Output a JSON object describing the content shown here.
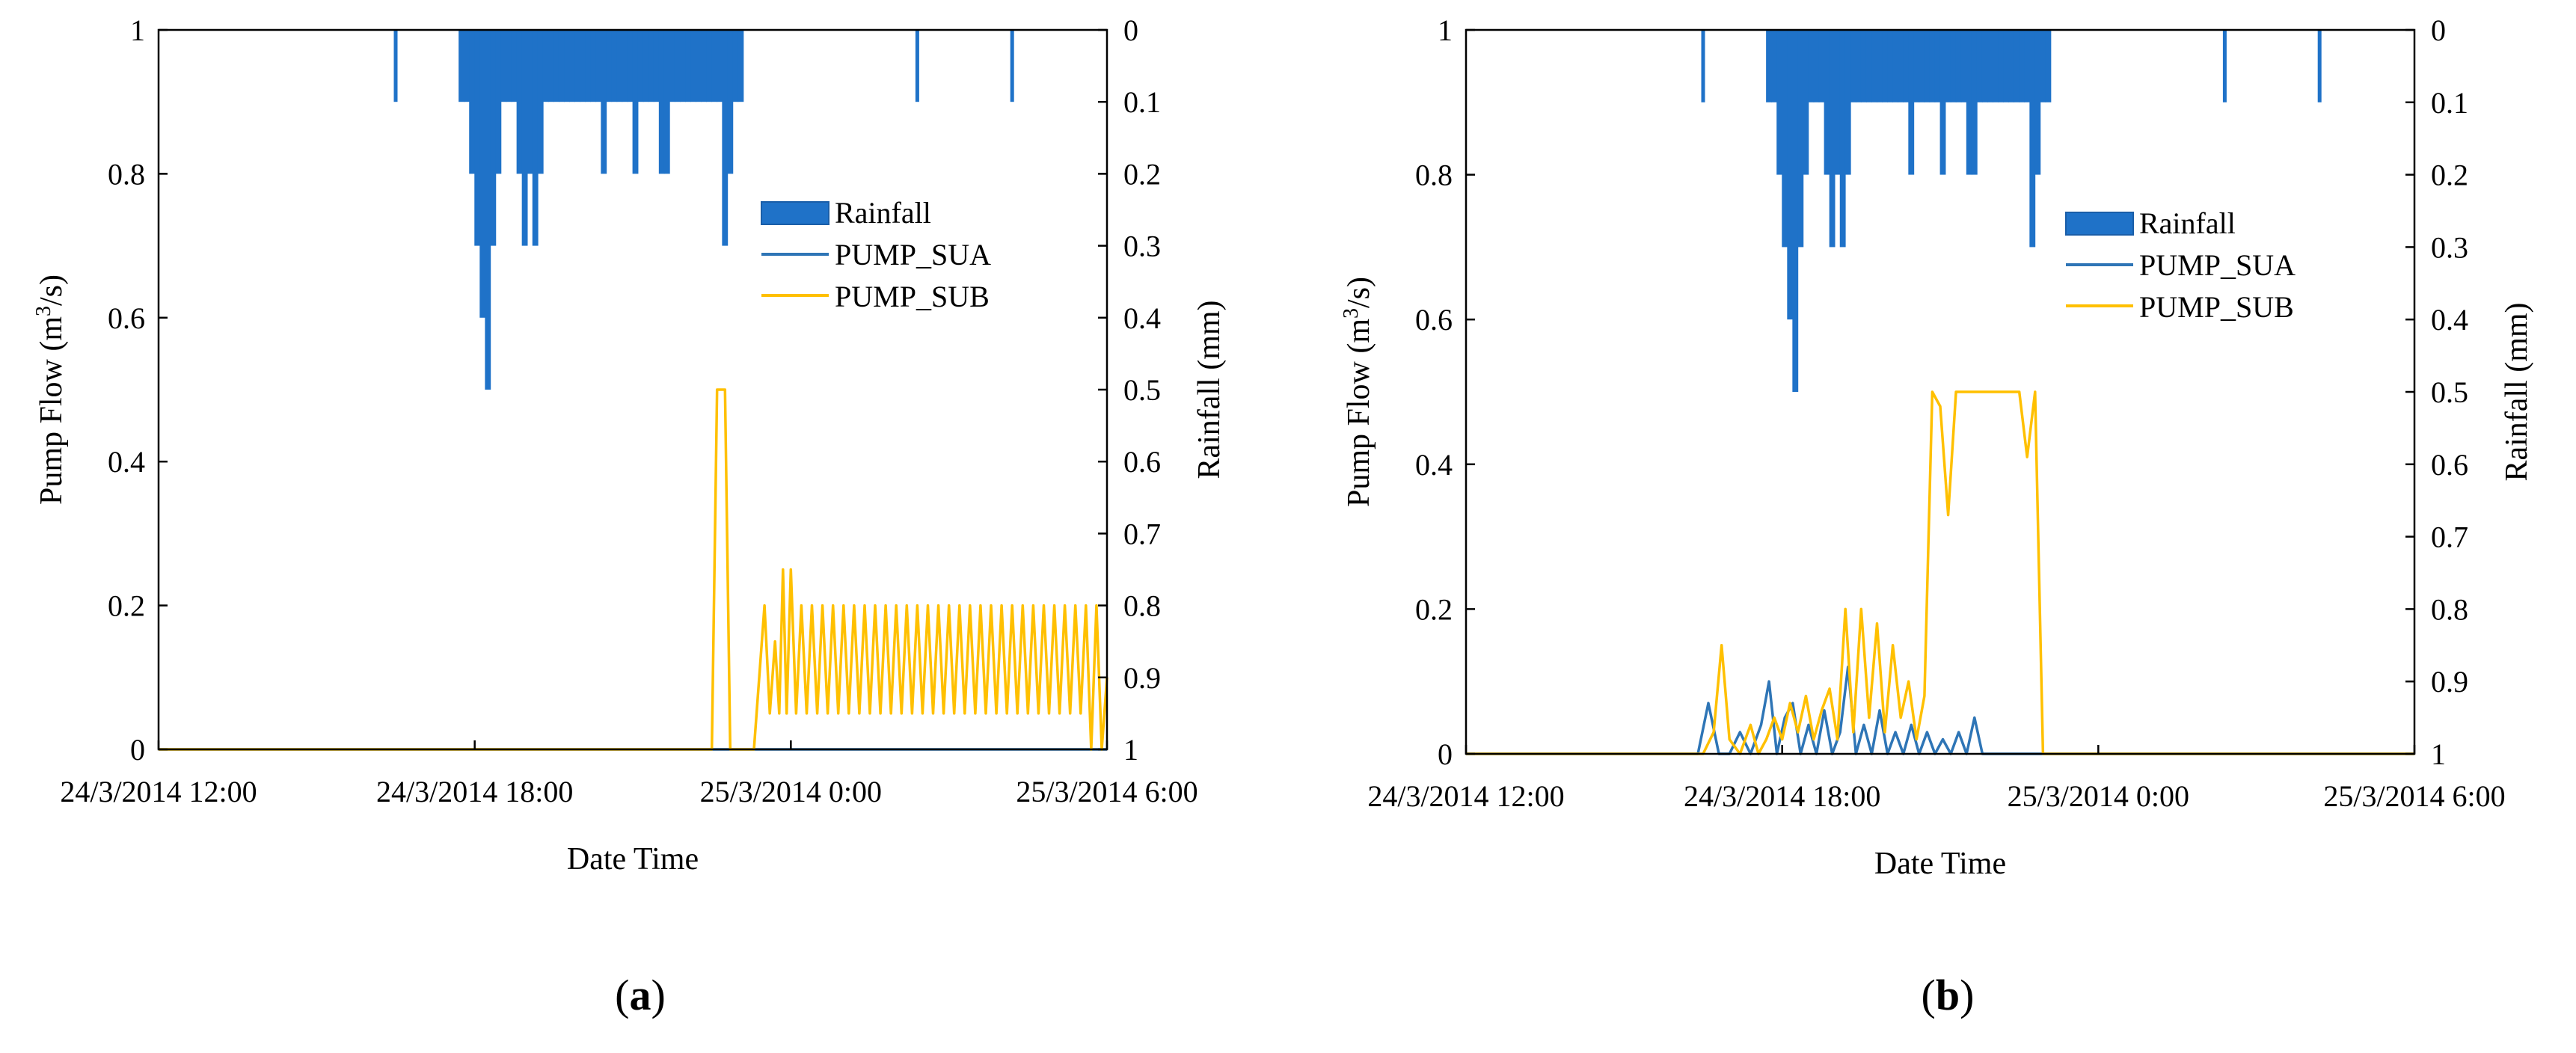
{
  "colors": {
    "rainfall": "#1f72c8",
    "sua": "#2e75b6",
    "sub": "#ffc000",
    "axis": "#000000"
  },
  "chart_data": [
    {
      "type": "line",
      "panel": "a",
      "caption": {
        "open": "(",
        "letter": "a",
        "close": ")"
      },
      "xlabel": "Date Time",
      "ylabel": {
        "base": "Pump Flow (m",
        "sup": "3",
        "end": "/s)"
      },
      "y2label": "Rainfall (mm)",
      "xlim": [
        0,
        18
      ],
      "ylim": [
        0,
        1
      ],
      "y2lim": [
        1,
        0
      ],
      "x_unit": "hours since 24/3/2014 12:00",
      "xticks": [
        {
          "value": 0,
          "label": "24/3/2014 12:00"
        },
        {
          "value": 6,
          "label": "24/3/2014 18:00"
        },
        {
          "value": 12,
          "label": "25/3/2014 0:00"
        },
        {
          "value": 18,
          "label": "25/3/2014 6:00"
        }
      ],
      "yticks": [
        {
          "value": 0,
          "label": "0"
        },
        {
          "value": 0.2,
          "label": "0.2"
        },
        {
          "value": 0.4,
          "label": "0.4"
        },
        {
          "value": 0.6,
          "label": "0.6"
        },
        {
          "value": 0.8,
          "label": "0.8"
        },
        {
          "value": 1,
          "label": "1"
        }
      ],
      "y2ticks": [
        {
          "value": 0,
          "label": "0"
        },
        {
          "value": 0.1,
          "label": "0.1"
        },
        {
          "value": 0.2,
          "label": "0.2"
        },
        {
          "value": 0.3,
          "label": "0.3"
        },
        {
          "value": 0.4,
          "label": "0.4"
        },
        {
          "value": 0.5,
          "label": "0.5"
        },
        {
          "value": 0.6,
          "label": "0.6"
        },
        {
          "value": 0.7,
          "label": "0.7"
        },
        {
          "value": 0.8,
          "label": "0.8"
        },
        {
          "value": 0.9,
          "label": "0.9"
        },
        {
          "value": 1,
          "label": "1"
        }
      ],
      "legend": [
        {
          "name": "Rainfall",
          "kind": "bar"
        },
        {
          "name": "PUMP_SUA",
          "kind": "line"
        },
        {
          "name": "PUMP_SUB",
          "kind": "line"
        }
      ],
      "rainfall": {
        "x": [
          4.5,
          5.75,
          5.85,
          5.95,
          6.05,
          6.15,
          6.25,
          6.35,
          6.45,
          6.55,
          6.65,
          6.75,
          6.85,
          6.95,
          7.05,
          7.15,
          7.25,
          7.35,
          7.45,
          7.55,
          7.65,
          7.75,
          7.85,
          7.95,
          8.05,
          8.15,
          8.25,
          8.35,
          8.45,
          8.55,
          8.65,
          8.75,
          8.85,
          8.95,
          9.05,
          9.15,
          9.25,
          9.35,
          9.45,
          9.55,
          9.65,
          9.75,
          9.85,
          9.95,
          10.05,
          10.15,
          10.25,
          10.35,
          10.45,
          10.55,
          10.65,
          10.75,
          10.85,
          10.95,
          11.05,
          14.4,
          16.2
        ],
        "values": [
          0.1,
          0.1,
          0.1,
          0.2,
          0.3,
          0.4,
          0.5,
          0.3,
          0.2,
          0.1,
          0.1,
          0.1,
          0.2,
          0.3,
          0.2,
          0.3,
          0.2,
          0.1,
          0.1,
          0.1,
          0.1,
          0.1,
          0.1,
          0.1,
          0.1,
          0.1,
          0.1,
          0.1,
          0.2,
          0.1,
          0.1,
          0.1,
          0.1,
          0.1,
          0.2,
          0.1,
          0.1,
          0.1,
          0.1,
          0.2,
          0.2,
          0.1,
          0.1,
          0.1,
          0.1,
          0.1,
          0.1,
          0.1,
          0.1,
          0.1,
          0.1,
          0.3,
          0.2,
          0.1,
          0.1,
          0.1,
          0.1
        ]
      },
      "series": [
        {
          "name": "PUMP_SUA",
          "color_key": "sua",
          "x": [
            0,
            18
          ],
          "values": [
            0,
            0
          ]
        },
        {
          "name": "PUMP_SUB",
          "color_key": "sub",
          "x": [
            0,
            10.5,
            10.6,
            10.75,
            10.85,
            11.0,
            11.3,
            11.5,
            11.6,
            11.7,
            11.78,
            11.85,
            11.92,
            12.0,
            12.1,
            12.2,
            12.3,
            12.4,
            12.5,
            12.6,
            12.7,
            12.8,
            12.9,
            13.0,
            13.1,
            13.2,
            13.3,
            13.4,
            13.5,
            13.6,
            13.7,
            13.8,
            13.9,
            14.0,
            14.1,
            14.2,
            14.3,
            14.4,
            14.5,
            14.6,
            14.7,
            14.8,
            14.9,
            15.0,
            15.1,
            15.2,
            15.3,
            15.4,
            15.5,
            15.6,
            15.7,
            15.8,
            15.9,
            16.0,
            16.1,
            16.2,
            16.3,
            16.4,
            16.5,
            16.6,
            16.7,
            16.8,
            16.9,
            17.0,
            17.1,
            17.2,
            17.3,
            17.4,
            17.5,
            17.6,
            17.7,
            17.8,
            17.9,
            18.0
          ],
          "values": [
            0,
            0,
            0.5,
            0.5,
            0,
            0,
            0,
            0.2,
            0.05,
            0.15,
            0.05,
            0.25,
            0.05,
            0.25,
            0.05,
            0.2,
            0.05,
            0.2,
            0.05,
            0.2,
            0.05,
            0.2,
            0.05,
            0.2,
            0.05,
            0.2,
            0.05,
            0.2,
            0.05,
            0.2,
            0.05,
            0.2,
            0.05,
            0.2,
            0.05,
            0.2,
            0.05,
            0.2,
            0.05,
            0.2,
            0.05,
            0.2,
            0.05,
            0.2,
            0.05,
            0.2,
            0.05,
            0.2,
            0.05,
            0.2,
            0.05,
            0.2,
            0.05,
            0.2,
            0.05,
            0.2,
            0.05,
            0.2,
            0.05,
            0.2,
            0.05,
            0.2,
            0.05,
            0.2,
            0.05,
            0.2,
            0.05,
            0.2,
            0.05,
            0.2,
            0.0,
            0.2,
            0.0,
            0.1
          ]
        }
      ]
    },
    {
      "type": "line",
      "panel": "b",
      "caption": {
        "open": "(",
        "letter": "b",
        "close": ")"
      },
      "xlabel": "Date Time",
      "ylabel": {
        "base": "Pump Flow (m",
        "sup": "3",
        "end": "/s)"
      },
      "y2label": "Rainfall (mm)",
      "xlim": [
        0,
        18
      ],
      "ylim": [
        0,
        1
      ],
      "y2lim": [
        1,
        0
      ],
      "x_unit": "hours since 24/3/2014 12:00",
      "xticks": [
        {
          "value": 0,
          "label": "24/3/2014 12:00"
        },
        {
          "value": 6,
          "label": "24/3/2014 18:00"
        },
        {
          "value": 12,
          "label": "25/3/2014 0:00"
        },
        {
          "value": 18,
          "label": "25/3/2014 6:00"
        }
      ],
      "yticks": [
        {
          "value": 0,
          "label": "0"
        },
        {
          "value": 0.2,
          "label": "0.2"
        },
        {
          "value": 0.4,
          "label": "0.4"
        },
        {
          "value": 0.6,
          "label": "0.6"
        },
        {
          "value": 0.8,
          "label": "0.8"
        },
        {
          "value": 1,
          "label": "1"
        }
      ],
      "y2ticks": [
        {
          "value": 0,
          "label": "0"
        },
        {
          "value": 0.1,
          "label": "0.1"
        },
        {
          "value": 0.2,
          "label": "0.2"
        },
        {
          "value": 0.3,
          "label": "0.3"
        },
        {
          "value": 0.4,
          "label": "0.4"
        },
        {
          "value": 0.5,
          "label": "0.5"
        },
        {
          "value": 0.6,
          "label": "0.6"
        },
        {
          "value": 0.7,
          "label": "0.7"
        },
        {
          "value": 0.8,
          "label": "0.8"
        },
        {
          "value": 0.9,
          "label": "0.9"
        },
        {
          "value": 1,
          "label": "1"
        }
      ],
      "legend": [
        {
          "name": "Rainfall",
          "kind": "bar"
        },
        {
          "name": "PUMP_SUA",
          "kind": "line"
        },
        {
          "name": "PUMP_SUB",
          "kind": "line"
        }
      ],
      "rainfall": {
        "x": [
          4.5,
          5.75,
          5.85,
          5.95,
          6.05,
          6.15,
          6.25,
          6.35,
          6.45,
          6.55,
          6.65,
          6.75,
          6.85,
          6.95,
          7.05,
          7.15,
          7.25,
          7.35,
          7.45,
          7.55,
          7.65,
          7.75,
          7.85,
          7.95,
          8.05,
          8.15,
          8.25,
          8.35,
          8.45,
          8.55,
          8.65,
          8.75,
          8.85,
          8.95,
          9.05,
          9.15,
          9.25,
          9.35,
          9.45,
          9.55,
          9.65,
          9.75,
          9.85,
          9.95,
          10.05,
          10.15,
          10.25,
          10.35,
          10.45,
          10.55,
          10.65,
          10.75,
          10.85,
          10.95,
          11.05,
          14.4,
          16.2
        ],
        "values": [
          0.1,
          0.1,
          0.1,
          0.2,
          0.3,
          0.4,
          0.5,
          0.3,
          0.2,
          0.1,
          0.1,
          0.1,
          0.2,
          0.3,
          0.2,
          0.3,
          0.2,
          0.1,
          0.1,
          0.1,
          0.1,
          0.1,
          0.1,
          0.1,
          0.1,
          0.1,
          0.1,
          0.1,
          0.2,
          0.1,
          0.1,
          0.1,
          0.1,
          0.1,
          0.2,
          0.1,
          0.1,
          0.1,
          0.1,
          0.2,
          0.2,
          0.1,
          0.1,
          0.1,
          0.1,
          0.1,
          0.1,
          0.1,
          0.1,
          0.1,
          0.1,
          0.3,
          0.2,
          0.1,
          0.1,
          0.1,
          0.1
        ]
      },
      "series": [
        {
          "name": "PUMP_SUA",
          "color_key": "sua",
          "x": [
            0,
            4.4,
            4.6,
            4.8,
            5.0,
            5.2,
            5.4,
            5.6,
            5.75,
            5.9,
            6.05,
            6.2,
            6.35,
            6.5,
            6.65,
            6.8,
            6.95,
            7.1,
            7.25,
            7.4,
            7.55,
            7.7,
            7.85,
            8.0,
            8.15,
            8.3,
            8.45,
            8.6,
            8.75,
            8.9,
            9.05,
            9.2,
            9.35,
            9.5,
            9.65,
            9.8,
            9.95,
            10.1,
            10.25,
            10.4,
            18
          ],
          "values": [
            0,
            0,
            0.07,
            0,
            0,
            0.03,
            0,
            0.04,
            0.1,
            0,
            0.05,
            0.07,
            0,
            0.04,
            0,
            0.06,
            0,
            0.03,
            0.12,
            0,
            0.04,
            0,
            0.06,
            0,
            0.03,
            0,
            0.04,
            0,
            0.03,
            0,
            0.02,
            0,
            0.03,
            0,
            0.05,
            0,
            0,
            0,
            0,
            0,
            0
          ]
        },
        {
          "name": "PUMP_SUB",
          "color_key": "sub",
          "x": [
            0,
            4.5,
            4.7,
            4.85,
            5.0,
            5.2,
            5.4,
            5.55,
            5.7,
            5.85,
            6.0,
            6.15,
            6.3,
            6.45,
            6.6,
            6.75,
            6.9,
            7.05,
            7.2,
            7.35,
            7.5,
            7.65,
            7.8,
            7.95,
            8.1,
            8.25,
            8.4,
            8.55,
            8.7,
            8.85,
            9.0,
            9.15,
            9.3,
            9.45,
            9.6,
            9.75,
            9.9,
            10.05,
            10.2,
            10.35,
            10.5,
            10.65,
            10.8,
            10.95,
            11.2,
            11.4,
            11.55,
            11.7,
            11.85,
            12.0,
            18
          ],
          "values": [
            0,
            0,
            0.03,
            0.15,
            0.02,
            0,
            0.04,
            0,
            0.02,
            0.05,
            0.02,
            0.07,
            0.03,
            0.08,
            0.02,
            0.06,
            0.09,
            0.02,
            0.2,
            0.03,
            0.2,
            0.05,
            0.18,
            0.03,
            0.15,
            0.05,
            0.1,
            0.02,
            0.08,
            0.5,
            0.48,
            0.33,
            0.5,
            0.5,
            0.5,
            0.5,
            0.5,
            0.5,
            0.5,
            0.5,
            0.5,
            0.41,
            0.5,
            0,
            0,
            0,
            0,
            0,
            0,
            0,
            0
          ]
        }
      ]
    }
  ]
}
